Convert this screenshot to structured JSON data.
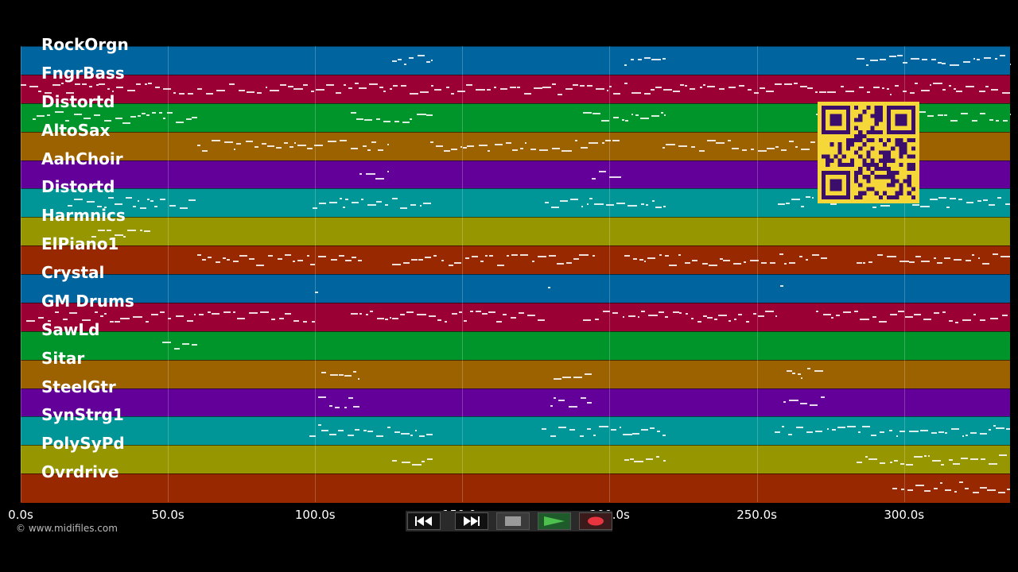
{
  "tracks": [
    {
      "name": "RockOrgn",
      "color": "#00649e"
    },
    {
      "name": "FngrBass",
      "color": "#9a0034"
    },
    {
      "name": "Distortd",
      "color": "#00952a"
    },
    {
      "name": "AltoSax",
      "color": "#9c6200"
    },
    {
      "name": "AahChoir",
      "color": "#63009a"
    },
    {
      "name": "Distortd",
      "color": "#009596"
    },
    {
      "name": "Harmnics",
      "color": "#969600"
    },
    {
      "name": "ElPiano1",
      "color": "#982800"
    },
    {
      "name": "Crystal",
      "color": "#00649e"
    },
    {
      "name": "GM Drums",
      "color": "#9a0034"
    },
    {
      "name": "SawLd",
      "color": "#00952a"
    },
    {
      "name": "Sitar",
      "color": "#9c6200"
    },
    {
      "name": "SteelGtr",
      "color": "#63009a"
    },
    {
      "name": "SynStrg1",
      "color": "#009596"
    },
    {
      "name": "PolySyPd",
      "color": "#969600"
    },
    {
      "name": "Ovrdrive",
      "color": "#982800"
    }
  ],
  "timeline": {
    "ticks": [
      "0.0s",
      "50.0s",
      "100.0s",
      "150.0s",
      "200.0s",
      "250.0s",
      "300.0s"
    ],
    "tick_seconds": [
      0,
      50,
      100,
      150,
      200,
      250,
      300
    ],
    "max_seconds": 336
  },
  "copyright": "© www.midifiles.com",
  "transport": {
    "rewind": "rewind-icon",
    "fast_forward": "fast-forward-icon",
    "stop": "stop-icon",
    "play": "play-icon",
    "record": "record-icon"
  },
  "qr_label": "qr-code-icon"
}
